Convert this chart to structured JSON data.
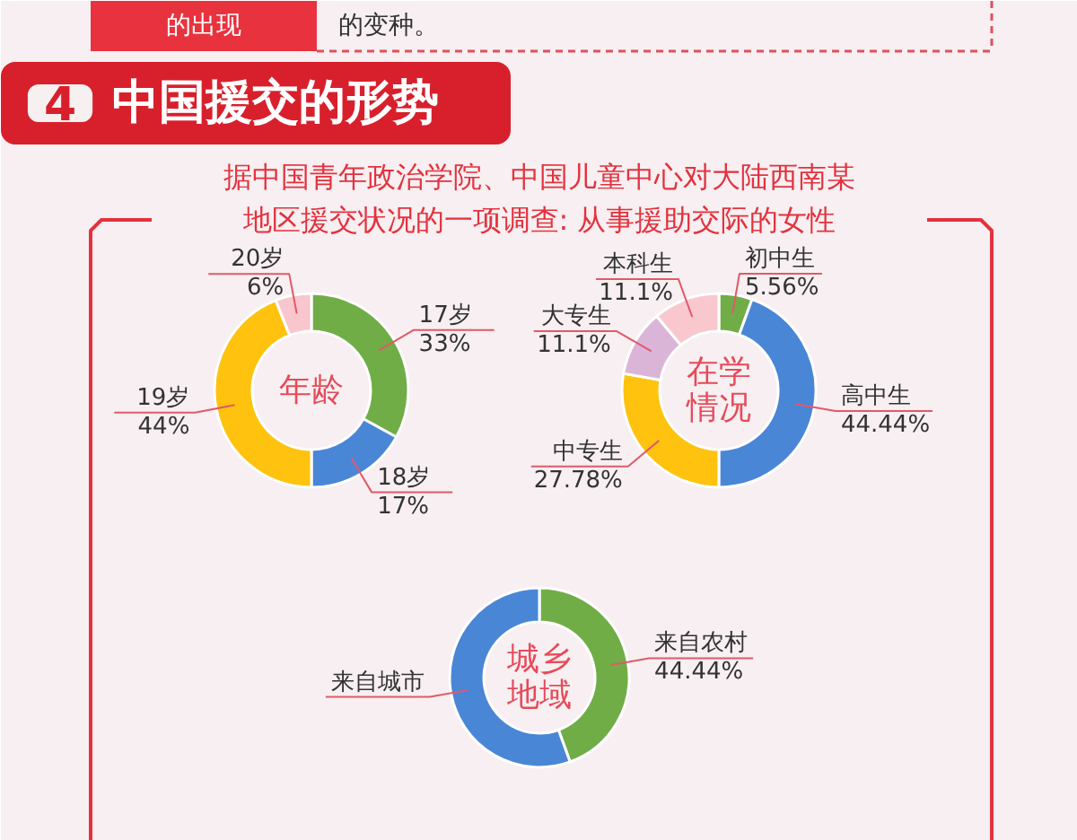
{
  "chart_data": [
    {
      "type": "other",
      "title": "中国援交的形势",
      "subtitle": "据中国青年政治学院、中国儿童中心对大陆西南某地区援交状况的一项调查: 从事援助交际的女性",
      "annotations": [
        "的出现",
        "的变种。",
        "4"
      ]
    },
    {
      "type": "donut",
      "title": "年龄",
      "categories": [
        "17岁",
        "18岁",
        "19岁",
        "20岁"
      ],
      "values": [
        33,
        17,
        44,
        6
      ],
      "colors": [
        "#70ad47",
        "#4a86d6",
        "#ffc20e",
        "#f8c6cc"
      ],
      "value_labels": [
        "33%",
        "17%",
        "44%",
        "6%"
      ]
    },
    {
      "type": "donut",
      "title": "在学情况",
      "categories": [
        "初中生",
        "高中生",
        "中专生",
        "大专生",
        "本科生"
      ],
      "values": [
        5.56,
        44.44,
        27.78,
        11.1,
        11.1
      ],
      "colors": [
        "#70ad47",
        "#4a86d6",
        "#ffc20e",
        "#dbb5d8",
        "#f9c8cf"
      ],
      "value_labels": [
        "5.56%",
        "44.44%",
        "27.78%",
        "11.1%",
        "11.1%"
      ]
    },
    {
      "type": "donut",
      "title": "城乡地域",
      "categories": [
        "来自农村",
        "来自城市"
      ],
      "values": [
        44.44,
        55.56
      ],
      "colors": [
        "#70ad47",
        "#4a86d6"
      ],
      "value_labels": [
        "44.44%",
        null
      ]
    }
  ]
}
